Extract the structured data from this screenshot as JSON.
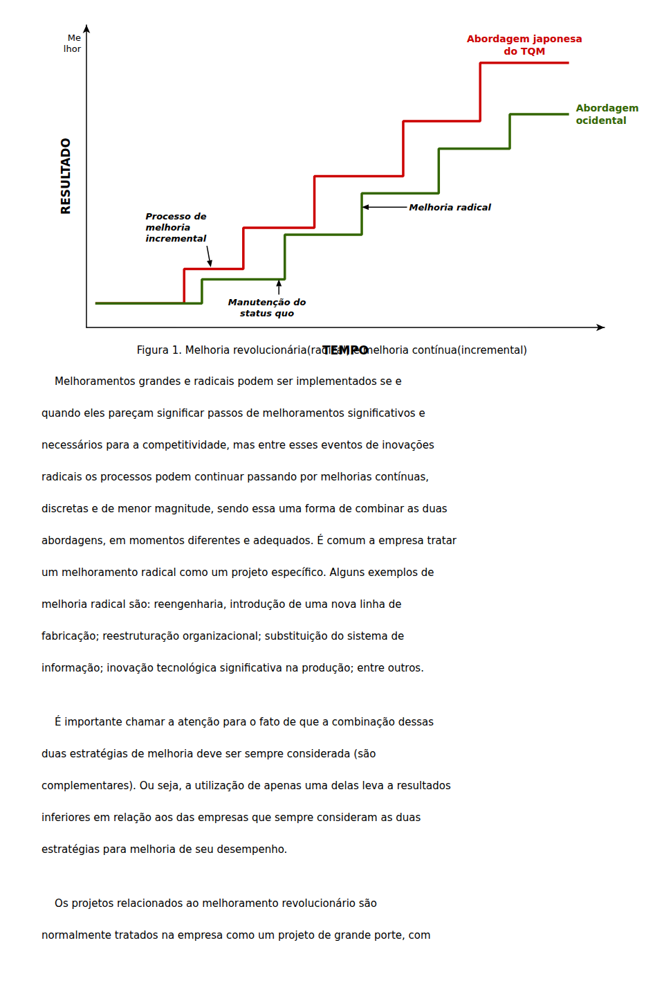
{
  "chart_data": {
    "type": "line",
    "xlabel": "TEMPO",
    "ylabel": "RESULTADO",
    "ylabel_top": "Me\nlhor",
    "xlim": [
      -0.15,
      8.6
    ],
    "ylim": [
      -0.2,
      8.6
    ],
    "xticks": [],
    "yticks": [],
    "tick_labels": false,
    "grid": false,
    "series": [
      {
        "name": "Abordagem japonesa\ndo TQM",
        "color": "#cc0000",
        "x": [
          0.0,
          1.5,
          1.5,
          2.5,
          2.5,
          3.7,
          3.7,
          5.2,
          5.2,
          6.5,
          6.5,
          8.0
        ],
        "values": [
          0.5,
          0.5,
          1.5,
          1.5,
          2.7,
          2.7,
          4.2,
          4.2,
          5.8,
          5.8,
          7.5,
          7.5
        ]
      },
      {
        "name": "Abordagem\nocidental",
        "color": "#336600",
        "x": [
          0.0,
          1.8,
          1.8,
          3.2,
          3.2,
          4.5,
          4.5,
          5.8,
          5.8,
          7.0,
          7.0,
          8.0
        ],
        "values": [
          0.5,
          0.5,
          1.2,
          1.2,
          2.5,
          2.5,
          3.7,
          3.7,
          5.0,
          5.0,
          6.0,
          6.0
        ]
      }
    ],
    "annotations": [
      {
        "text": "Processo de\nmelhoria\nincremental",
        "xy": [
          1.95,
          1.55
        ],
        "xytext": [
          0.85,
          3.2
        ]
      },
      {
        "text": "Melhoria radical",
        "xy": [
          4.5,
          3.3
        ],
        "xytext": [
          5.3,
          3.3
        ]
      },
      {
        "text": "Manutenção do\nstatus quo",
        "xy": [
          3.1,
          1.2
        ],
        "xytext": [
          2.9,
          0.05
        ]
      }
    ],
    "caption": "Figura 1. Melhoria revolucionária(radical) e melhoria contínua(incremental)",
    "paragraphs": [
      [
        "    Melhoramentos grandes e radicais podem ser implementados se e",
        "quando eles pareçam significar passos de melhoramentos significativos e",
        "necessários para a competitividade, mas entre esses eventos de inovações",
        "radicais os processos podem continuar passando por melhorias contínuas,",
        "discretas e de menor magnitude, sendo essa uma forma de combinar as duas",
        "abordagens, em momentos diferentes e adequados. É comum a empresa tratar",
        "um melhoramento radical como um projeto específico. Alguns exemplos de",
        "melhoria radical são: reengenharia, introdução de uma nova linha de",
        "fabricação; reestruturação organizacional; substituição do sistema de",
        "informação; inovação tecnológica significativa na produção; entre outros."
      ],
      [
        "    É importante chamar a atenção para o fato de que a combinação dessas",
        "duas estratégias de melhoria deve ser sempre considerada (são",
        "complementares). Ou seja, a utilização de apenas uma delas leva a resultados",
        "inferiores em relação aos das empresas que sempre consideram as duas",
        "estratégias para melhoria de seu desempenho."
      ],
      [
        "    Os projetos relacionados ao melhoramento revolucionário são",
        "normalmente tratados na empresa como um projeto de grande porte, com"
      ]
    ]
  }
}
